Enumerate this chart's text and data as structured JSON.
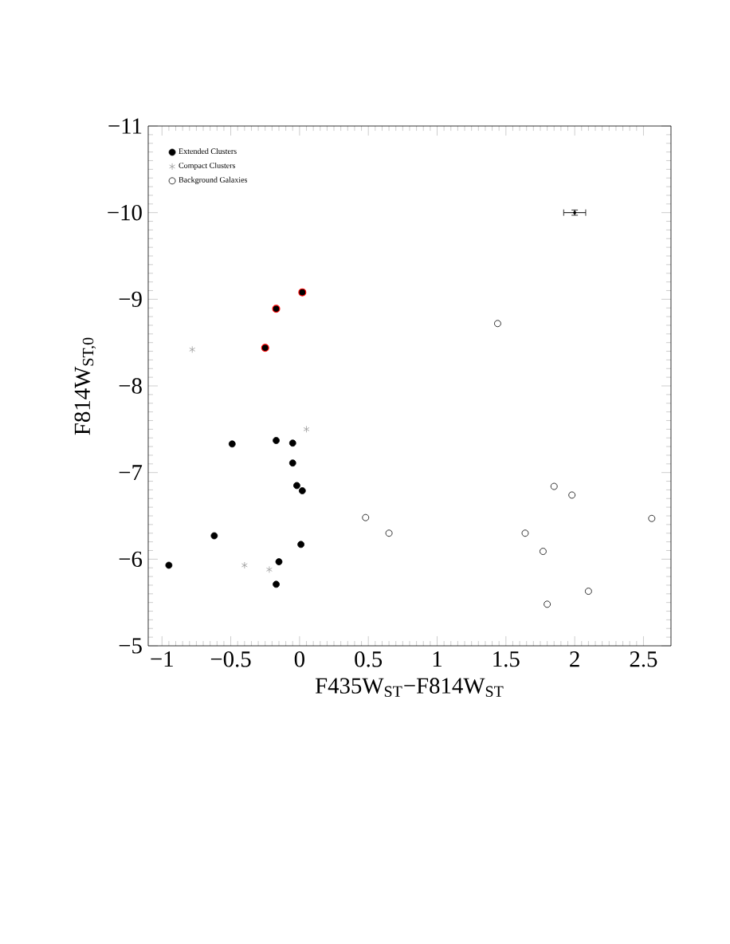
{
  "chart_data": {
    "type": "scatter",
    "xlabel": "F435W$_{ST}$−F814W$_{ST}$",
    "ylabel": "F814W$_{ST,0}$",
    "xlim": [
      -1.1,
      2.7
    ],
    "ylim": [
      -5,
      -11
    ],
    "xticks": [
      {
        "value": -1,
        "label": "−1"
      },
      {
        "value": -0.5,
        "label": "−0.5"
      },
      0,
      0.5,
      1,
      1.5,
      2,
      2.5
    ],
    "yticks": [
      {
        "value": -11,
        "label": "−11"
      },
      {
        "value": -10,
        "label": "−10"
      },
      {
        "value": -9,
        "label": "−9"
      },
      {
        "value": -8,
        "label": "−8"
      },
      {
        "value": -7,
        "label": "−7"
      },
      {
        "value": -6,
        "label": "−6"
      },
      {
        "value": -5,
        "label": "−5"
      }
    ],
    "legend": "top left",
    "grid": false,
    "series": [
      {
        "name": "Extended Clusters",
        "color": "#000000",
        "marker": "circle",
        "x": [
          -0.95,
          -0.62,
          -0.49,
          -0.17,
          -0.05,
          -0.05,
          -0.02,
          0.02,
          0.01,
          -0.15,
          -0.17
        ],
        "values": [
          -5.93,
          -6.27,
          -7.33,
          -7.37,
          -7.34,
          -7.11,
          -6.85,
          -6.79,
          -6.17,
          -5.97,
          -5.71
        ]
      },
      {
        "name": "Compact Clusters",
        "color": "#999999",
        "marker": "cross",
        "x": [
          -0.78,
          0.05,
          -0.4,
          -0.22
        ],
        "values": [
          -8.42,
          -7.5,
          -5.93,
          -5.88
        ]
      },
      {
        "name": "Background Galaxies",
        "color": "#000000",
        "marker": "open circle",
        "x": [
          1.44,
          0.48,
          0.65,
          1.85,
          1.98,
          1.64,
          1.77,
          2.1,
          1.8,
          2.56
        ],
        "values": [
          -8.72,
          -6.48,
          -6.3,
          -6.84,
          -6.74,
          -6.3,
          -6.09,
          -5.63,
          -5.48,
          -6.47
        ]
      },
      {
        "color": "#ff0000",
        "marker": "ringed circle",
        "x": [
          -0.25,
          -0.17,
          0.02
        ],
        "values": [
          -8.44,
          -8.89,
          -9.08
        ]
      },
      {
        "color": "#000000",
        "x": [
          2.0
        ],
        "values": [
          -10
        ],
        "xerrors": [
          0.08
        ],
        "errors": [
          0.03
        ]
      }
    ]
  }
}
